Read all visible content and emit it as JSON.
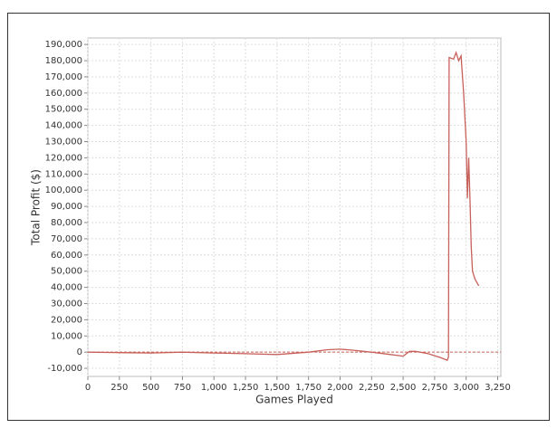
{
  "chart_data": {
    "type": "line",
    "xlabel": "Games Played",
    "ylabel": "Total Profit ($)",
    "x": [
      0,
      250,
      500,
      750,
      1000,
      1250,
      1500,
      1750,
      1900,
      2000,
      2100,
      2250,
      2400,
      2500,
      2550,
      2600,
      2700,
      2800,
      2850,
      2860,
      2865,
      2900,
      2920,
      2940,
      2960,
      2980,
      3000,
      3010,
      3020,
      3030,
      3040,
      3050,
      3070,
      3100
    ],
    "values": [
      0,
      -300,
      -500,
      0,
      -500,
      -1000,
      -1500,
      0,
      1500,
      1800,
      1200,
      0,
      -1500,
      -2500,
      500,
      500,
      -1000,
      -3500,
      -5000,
      -3000,
      182000,
      181000,
      185000,
      180000,
      183000,
      160000,
      130000,
      95000,
      120000,
      95000,
      65000,
      50000,
      45000,
      41000
    ],
    "color": "#c8605a",
    "reference_line": 0,
    "xlim": [
      0,
      3275
    ],
    "ylim": [
      -15000,
      194000
    ],
    "xticks": [
      0,
      250,
      500,
      750,
      {
        "value": 1000,
        "label": "1,000"
      },
      {
        "value": 1250,
        "label": "1,250"
      },
      {
        "value": 1500,
        "label": "1,500"
      },
      {
        "value": 1750,
        "label": "1,750"
      },
      {
        "value": 2000,
        "label": "2,000"
      },
      {
        "value": 2250,
        "label": "2,250"
      },
      {
        "value": 2500,
        "label": "2,500"
      },
      {
        "value": 2750,
        "label": "2,750"
      },
      {
        "value": 3000,
        "label": "3,000"
      },
      {
        "value": 3250,
        "label": "3,250"
      }
    ],
    "yticks": [
      {
        "value": -10000,
        "label": "-10,000"
      },
      0,
      {
        "value": 10000,
        "label": "10,000"
      },
      {
        "value": 20000,
        "label": "20,000"
      },
      {
        "value": 30000,
        "label": "30,000"
      },
      {
        "value": 40000,
        "label": "40,000"
      },
      {
        "value": 50000,
        "label": "50,000"
      },
      {
        "value": 60000,
        "label": "60,000"
      },
      {
        "value": 70000,
        "label": "70,000"
      },
      {
        "value": 80000,
        "label": "80,000"
      },
      {
        "value": 90000,
        "label": "90,000"
      },
      {
        "value": 100000,
        "label": "100,000"
      },
      {
        "value": 110000,
        "label": "110,000"
      },
      {
        "value": 120000,
        "label": "120,000"
      },
      {
        "value": 130000,
        "label": "130,000"
      },
      {
        "value": 140000,
        "label": "140,000"
      },
      {
        "value": 150000,
        "label": "150,000"
      },
      {
        "value": 160000,
        "label": "160,000"
      },
      {
        "value": 170000,
        "label": "170,000"
      },
      {
        "value": 180000,
        "label": "180,000"
      },
      {
        "value": 190000,
        "label": "190,000"
      }
    ],
    "grid": true
  }
}
